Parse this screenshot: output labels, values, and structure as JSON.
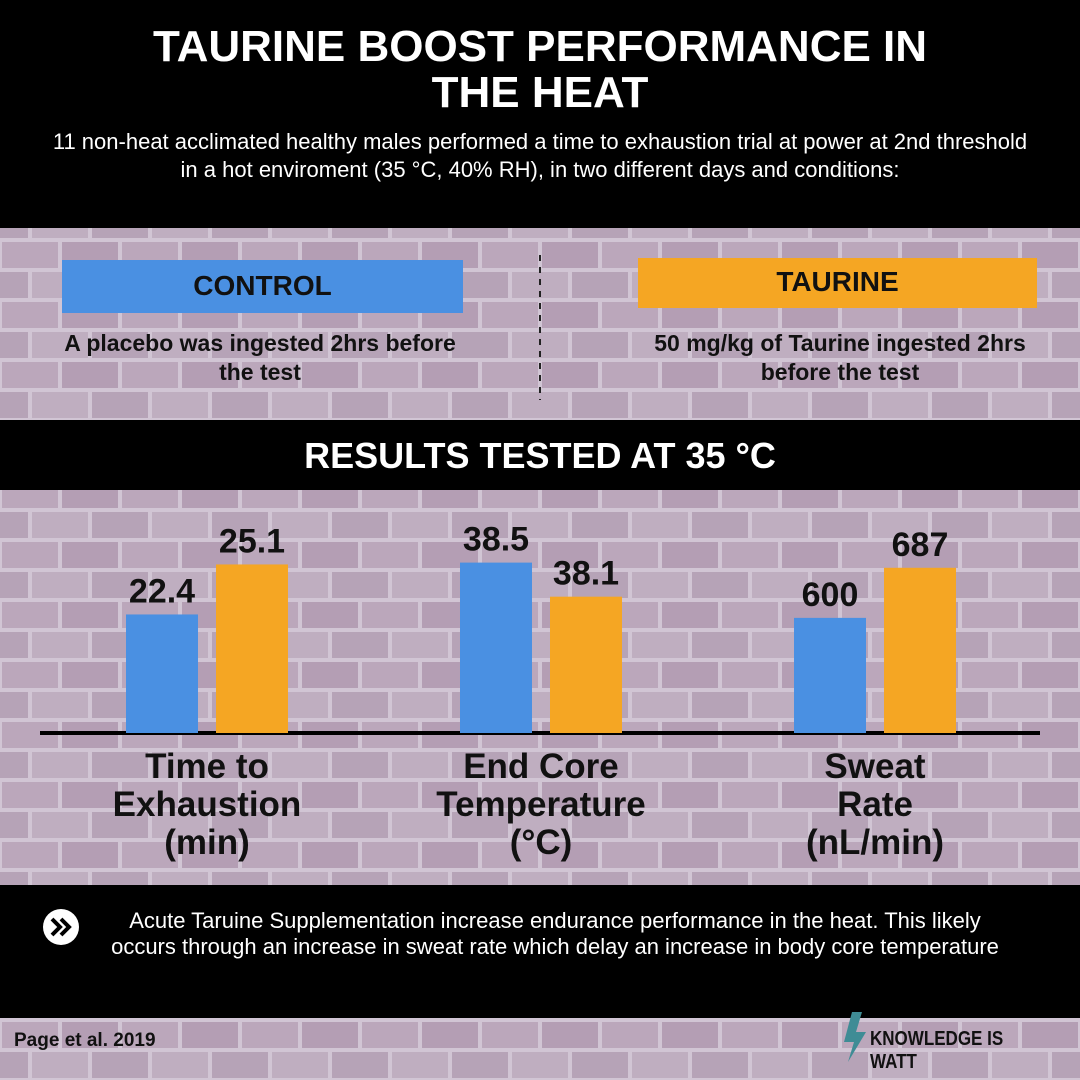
{
  "header": {
    "title": "TAURINE BOOST PERFORMANCE IN THE HEAT",
    "subtitle": "11 non-heat acclimated healthy males performed a time to exhaustion trial at power at 2nd threshold in a hot enviroment (35 °C, 40% RH), in two different days and conditions:"
  },
  "conditions": [
    {
      "description": "A placebo was ingested 2hrs before the test"
    },
    {
      "description": "50 mg/kg of Taurine ingested 2hrs before the test"
    }
  ],
  "results_title": "RESULTS TESTED AT 35 °C",
  "chart_data": [
    {
      "type": "bar",
      "xlabel": "Time to Exhaustion (min)",
      "ylim": [
        16,
        27.5
      ],
      "series": [
        {
          "name": "CONTROL",
          "color": "#4a90e2",
          "values": [
            22.4
          ]
        },
        {
          "name": "TAURINE",
          "color": "#f5a623",
          "values": [
            25.1
          ]
        }
      ]
    },
    {
      "type": "bar",
      "xlabel": "End Core Temperature (°C)",
      "ylim": [
        36.5,
        39
      ],
      "series": [
        {
          "color": "#4a90e2",
          "values": [
            38.5
          ]
        },
        {
          "color": "#f5a623",
          "values": [
            38.1
          ]
        }
      ]
    },
    {
      "type": "bar",
      "xlabel": "Sweat Rate (nL/min)",
      "ylim": [
        400,
        770
      ],
      "series": [
        {
          "color": "#4a90e2",
          "values": [
            600
          ]
        },
        {
          "color": "#f5a623",
          "values": [
            687
          ]
        }
      ]
    }
  ],
  "conclusion": "Acute Taruine Supplementation increase endurance performance in the heat. This likely occurs through an increase in sweat rate which delay an increase in body core temperature",
  "footer": {
    "citation": "Page et al. 2019",
    "brand": "KNOWLEDGE IS WATT"
  }
}
